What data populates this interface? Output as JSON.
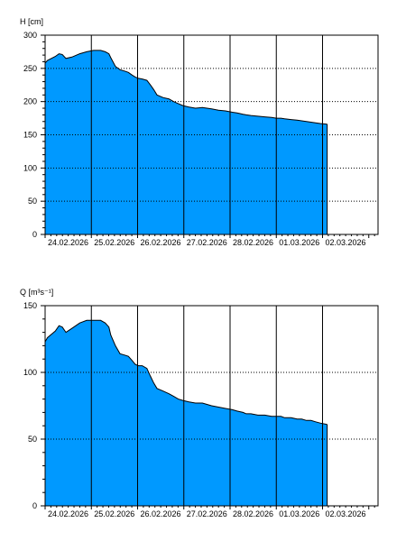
{
  "colors": {
    "fill": "#0099ff",
    "edge": "#000000",
    "grid": "#000000",
    "background": "#ffffff"
  },
  "chart_data": [
    {
      "type": "area",
      "ylabel": "H [cm]",
      "ylim": [
        0,
        300
      ],
      "yticks": [
        0,
        50,
        100,
        150,
        200,
        250,
        300
      ],
      "ylabels": [
        "0",
        "50",
        "100",
        "150",
        "200",
        "250",
        "300"
      ],
      "xlim": [
        0,
        7.2
      ],
      "xticks": [
        0.0,
        1.0,
        2.0,
        3.0,
        4.0,
        5.0,
        6.0
      ],
      "xlabels": [
        "24.02.2026",
        "25.02.2026",
        "26.02.2026",
        "27.02.2026",
        "28.02.2026",
        "01.03.2026",
        "02.03.2026"
      ],
      "grid": true,
      "series": [
        {
          "x": [
            -0.5,
            -0.47,
            -0.28,
            -0.1,
            0.05,
            0.22,
            0.3,
            0.37,
            0.45,
            0.58,
            0.75,
            0.9,
            1.05,
            1.2,
            1.3,
            1.38,
            1.42,
            1.52,
            1.62,
            1.72,
            1.8,
            1.88,
            1.95,
            2.02,
            2.1,
            2.2,
            2.28,
            2.35,
            2.42,
            2.55,
            2.68,
            2.78,
            2.88,
            2.98,
            3.1,
            3.25,
            3.4,
            3.5,
            3.6,
            3.75,
            3.9,
            4.05,
            4.15,
            4.28,
            4.35,
            4.45,
            4.6,
            4.75,
            4.9,
            5.0,
            5.1,
            5.18,
            5.32,
            5.45,
            5.55,
            5.65,
            5.75,
            5.85,
            5.95,
            6.1
          ],
          "y": [
            245,
            248,
            253,
            258,
            262,
            268,
            272,
            271,
            265,
            267,
            272,
            275,
            277,
            277,
            275,
            272,
            266,
            253,
            248,
            246,
            244,
            240,
            237,
            235,
            234,
            232,
            225,
            218,
            210,
            206,
            204,
            200,
            197,
            194,
            192,
            190,
            191,
            190,
            189,
            187,
            186,
            184,
            183,
            181,
            180,
            179,
            178,
            177,
            176,
            175,
            175,
            174,
            173,
            172,
            171,
            170,
            169,
            168,
            167,
            166
          ]
        }
      ]
    },
    {
      "type": "area",
      "ylabel": "Q [m³s⁻¹]",
      "ylim": [
        0,
        150
      ],
      "yticks": [
        0,
        50,
        100,
        150
      ],
      "ylabels": [
        "0",
        "50",
        "100",
        "150"
      ],
      "xlim": [
        0,
        7.2
      ],
      "xticks": [
        0.0,
        1.0,
        2.0,
        3.0,
        4.0,
        5.0,
        6.0
      ],
      "xlabels": [
        "24.02.2026",
        "25.02.2026",
        "26.02.2026",
        "27.02.2026",
        "28.02.2026",
        "01.03.2026",
        "02.03.2026"
      ],
      "grid": true,
      "series": [
        {
          "x": [
            -0.5,
            -0.47,
            -0.28,
            -0.1,
            0.05,
            0.22,
            0.3,
            0.37,
            0.45,
            0.58,
            0.75,
            0.9,
            1.05,
            1.2,
            1.3,
            1.38,
            1.42,
            1.52,
            1.62,
            1.72,
            1.8,
            1.88,
            1.95,
            2.02,
            2.1,
            2.2,
            2.28,
            2.35,
            2.42,
            2.55,
            2.68,
            2.78,
            2.88,
            2.98,
            3.1,
            3.25,
            3.4,
            3.5,
            3.6,
            3.75,
            3.9,
            4.05,
            4.15,
            4.28,
            4.35,
            4.45,
            4.6,
            4.75,
            4.9,
            5.0,
            5.1,
            5.18,
            5.32,
            5.45,
            5.55,
            5.65,
            5.75,
            5.85,
            5.95,
            6.1
          ],
          "y": [
            109,
            112,
            117,
            123,
            126,
            131,
            135,
            134,
            130,
            133,
            137,
            139,
            139,
            139,
            137,
            134,
            128,
            120,
            114,
            113,
            112,
            109,
            106,
            105,
            105,
            103,
            97,
            92,
            88,
            86,
            84,
            82,
            80,
            79,
            78,
            77,
            77,
            76,
            75,
            74,
            73,
            72,
            71,
            70,
            69,
            69,
            68,
            68,
            67,
            67,
            67,
            66,
            66,
            65,
            65,
            64,
            64,
            63,
            62,
            61
          ]
        }
      ]
    }
  ]
}
